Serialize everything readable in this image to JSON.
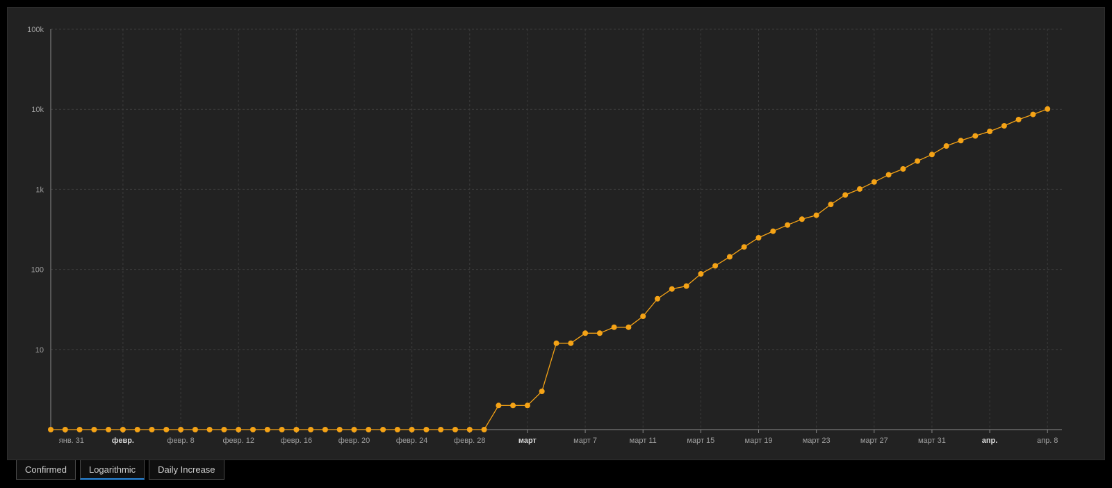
{
  "tabs": [
    {
      "label": "Confirmed",
      "active": false
    },
    {
      "label": "Logarithmic",
      "active": true
    },
    {
      "label": "Daily Increase",
      "active": false
    }
  ],
  "colors": {
    "background": "#000000",
    "panel": "#222222",
    "series": "#f5a316",
    "grid": "#3c3c3c",
    "axis": "#8a8a8a",
    "tick_text": "#a0a0a0",
    "tab_active_underline": "#2a8ae0"
  },
  "chart_data": {
    "type": "line",
    "title": "",
    "xlabel": "",
    "ylabel": "",
    "y_scale": "log",
    "ylim": [
      1,
      100000
    ],
    "grid": true,
    "markers": true,
    "x_start_date": "2020-01-30",
    "x_range": [
      "2020-01-30",
      "2020-04-09"
    ],
    "x_ticks": [
      {
        "date": "2020-01-31",
        "label": "янв. 31",
        "bold": false
      },
      {
        "date": "2020-02-04",
        "label": "февр.",
        "bold": true
      },
      {
        "date": "2020-02-08",
        "label": "февр. 8",
        "bold": false
      },
      {
        "date": "2020-02-12",
        "label": "февр. 12",
        "bold": false
      },
      {
        "date": "2020-02-16",
        "label": "февр. 16",
        "bold": false
      },
      {
        "date": "2020-02-20",
        "label": "февр. 20",
        "bold": false
      },
      {
        "date": "2020-02-24",
        "label": "февр. 24",
        "bold": false
      },
      {
        "date": "2020-02-28",
        "label": "февр. 28",
        "bold": false
      },
      {
        "date": "2020-03-03",
        "label": "март",
        "bold": true
      },
      {
        "date": "2020-03-07",
        "label": "март 7",
        "bold": false
      },
      {
        "date": "2020-03-11",
        "label": "март 11",
        "bold": false
      },
      {
        "date": "2020-03-15",
        "label": "март 15",
        "bold": false
      },
      {
        "date": "2020-03-19",
        "label": "март 19",
        "bold": false
      },
      {
        "date": "2020-03-23",
        "label": "март 23",
        "bold": false
      },
      {
        "date": "2020-03-27",
        "label": "март 27",
        "bold": false
      },
      {
        "date": "2020-03-31",
        "label": "март 31",
        "bold": false
      },
      {
        "date": "2020-04-04",
        "label": "апр.",
        "bold": true
      },
      {
        "date": "2020-04-08",
        "label": "апр. 8",
        "bold": false
      }
    ],
    "y_ticks": [
      {
        "value": 10,
        "label": "10"
      },
      {
        "value": 100,
        "label": "100"
      },
      {
        "value": 1000,
        "label": "1k"
      },
      {
        "value": 10000,
        "label": "10k"
      },
      {
        "value": 100000,
        "label": "100k"
      }
    ],
    "series": [
      {
        "values": [
          1,
          1,
          1,
          1,
          1,
          1,
          1,
          1,
          1,
          1,
          1,
          1,
          1,
          1,
          1,
          1,
          1,
          1,
          1,
          1,
          1,
          1,
          1,
          1,
          1,
          1,
          1,
          1,
          1,
          1,
          1,
          2,
          2,
          2,
          3,
          12,
          12,
          16,
          16,
          19,
          19,
          26,
          43,
          57,
          62,
          88,
          111,
          144,
          191,
          249,
          300,
          359,
          424,
          475,
          648,
          851,
          1011,
          1237,
          1523,
          1799,
          2255,
          2721,
          3484,
          4062,
          4651,
          5292,
          6219,
          7433,
          8631,
          10080
        ]
      }
    ]
  }
}
